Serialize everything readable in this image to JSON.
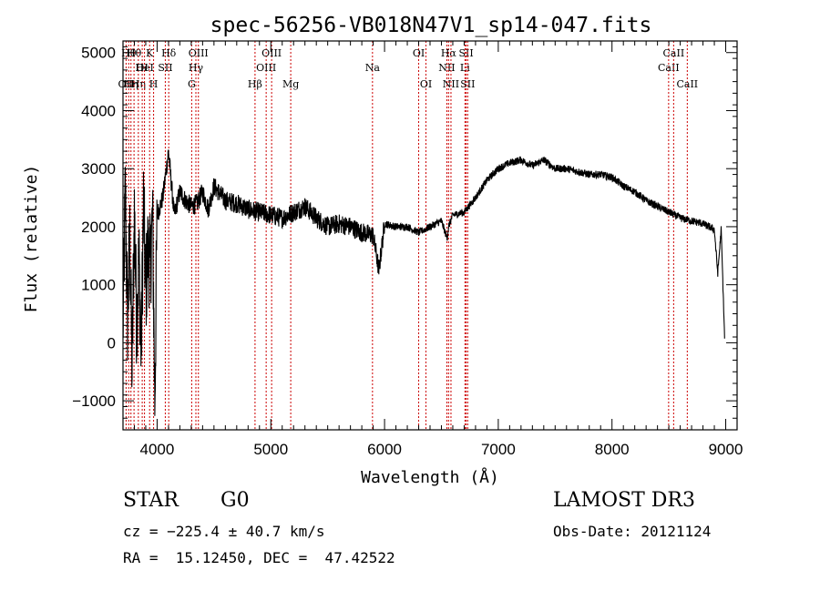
{
  "chart_data": {
    "type": "line",
    "title": "spec-56256-VB018N47V1_sp14-047.fits",
    "xlabel": "Wavelength (Å)",
    "ylabel": "Flux (relative)",
    "xlim": [
      3700,
      9100
    ],
    "ylim": [
      -1500,
      5200
    ],
    "xticks": [
      4000,
      5000,
      6000,
      7000,
      8000,
      9000
    ],
    "yticks": [
      -1000,
      0,
      1000,
      2000,
      3000,
      4000,
      5000
    ],
    "grid": false,
    "series": [
      {
        "name": "spectrum",
        "x": [
          3700,
          3720,
          3740,
          3760,
          3780,
          3800,
          3820,
          3840,
          3860,
          3880,
          3900,
          3920,
          3940,
          3960,
          3980,
          4000,
          4050,
          4100,
          4150,
          4200,
          4250,
          4300,
          4350,
          4400,
          4450,
          4500,
          4600,
          4700,
          4800,
          4900,
          5000,
          5100,
          5200,
          5300,
          5400,
          5500,
          5600,
          5700,
          5800,
          5900,
          5950,
          6000,
          6100,
          6200,
          6300,
          6400,
          6500,
          6550,
          6563,
          6600,
          6700,
          6800,
          6900,
          7000,
          7100,
          7200,
          7300,
          7400,
          7500,
          7600,
          7700,
          7800,
          7900,
          8000,
          8100,
          8200,
          8300,
          8400,
          8500,
          8600,
          8700,
          8800,
          8850,
          8900,
          8930,
          8960,
          8990
        ],
        "y": [
          200,
          2600,
          400,
          1800,
          -500,
          2300,
          300,
          1500,
          -200,
          2400,
          900,
          1600,
          1300,
          2200,
          -1000,
          2200,
          2500,
          3300,
          2200,
          2600,
          2450,
          2350,
          2400,
          2600,
          2300,
          2700,
          2450,
          2400,
          2300,
          2250,
          2200,
          2150,
          2250,
          2350,
          2150,
          2000,
          2050,
          2000,
          1900,
          1850,
          1250,
          2050,
          2000,
          2000,
          1900,
          2000,
          2100,
          1800,
          2000,
          2200,
          2250,
          2500,
          2800,
          3000,
          3100,
          3150,
          3050,
          3150,
          3000,
          3000,
          2950,
          2900,
          2900,
          2850,
          2700,
          2600,
          2450,
          2350,
          2250,
          2150,
          2100,
          2050,
          2000,
          1950,
          1200,
          1950,
          100
        ]
      }
    ],
    "lines": [
      {
        "x": 3727,
        "label": "OII",
        "row": 3
      },
      {
        "x": 3750,
        "label": "Hθ",
        "row": 1
      },
      {
        "x": 3770,
        "label": "Hη",
        "row": 3
      },
      {
        "x": 3797,
        "label": "Hθ",
        "row": 1
      },
      {
        "x": 3835,
        "label": "Hη",
        "row": 3
      },
      {
        "x": 3869,
        "label": "OI",
        "row": 2
      },
      {
        "x": 3889,
        "label": "HeI",
        "row": 2
      },
      {
        "x": 3934,
        "label": "K",
        "row": 1
      },
      {
        "x": 3969,
        "label": "H",
        "row": 3
      },
      {
        "x": 4072,
        "label": "SII",
        "row": 2
      },
      {
        "x": 4102,
        "label": "Hδ",
        "row": 1
      },
      {
        "x": 4304,
        "label": "G",
        "row": 3
      },
      {
        "x": 4341,
        "label": "Hγ",
        "row": 2
      },
      {
        "x": 4363,
        "label": "OIII",
        "row": 1
      },
      {
        "x": 4861,
        "label": "Hβ",
        "row": 3
      },
      {
        "x": 4959,
        "label": "OIII",
        "row": 2
      },
      {
        "x": 5007,
        "label": "OIII",
        "row": 1
      },
      {
        "x": 5175,
        "label": "Mg",
        "row": 3
      },
      {
        "x": 5894,
        "label": "Na",
        "row": 2
      },
      {
        "x": 6300,
        "label": "OI",
        "row": 1
      },
      {
        "x": 6364,
        "label": "OI",
        "row": 3
      },
      {
        "x": 6548,
        "label": "NII",
        "row": 2
      },
      {
        "x": 6563,
        "label": "Hα",
        "row": 1
      },
      {
        "x": 6584,
        "label": "NII",
        "row": 3
      },
      {
        "x": 6707,
        "label": "Li",
        "row": 2
      },
      {
        "x": 6717,
        "label": "SII",
        "row": 1
      },
      {
        "x": 6731,
        "label": "SII",
        "row": 3
      },
      {
        "x": 8498,
        "label": "CaII",
        "row": 2
      },
      {
        "x": 8542,
        "label": "CaII",
        "row": 1
      },
      {
        "x": 8662,
        "label": "CaII",
        "row": 3
      }
    ]
  },
  "info": {
    "class_label": "STAR",
    "subclass": "G0",
    "survey": "LAMOST DR3",
    "cz": "cz = −225.4 ± 40.7 km/s",
    "obs_date": "Obs-Date: 20121124",
    "coords": "RA =  15.12450, DEC =  47.42522"
  }
}
